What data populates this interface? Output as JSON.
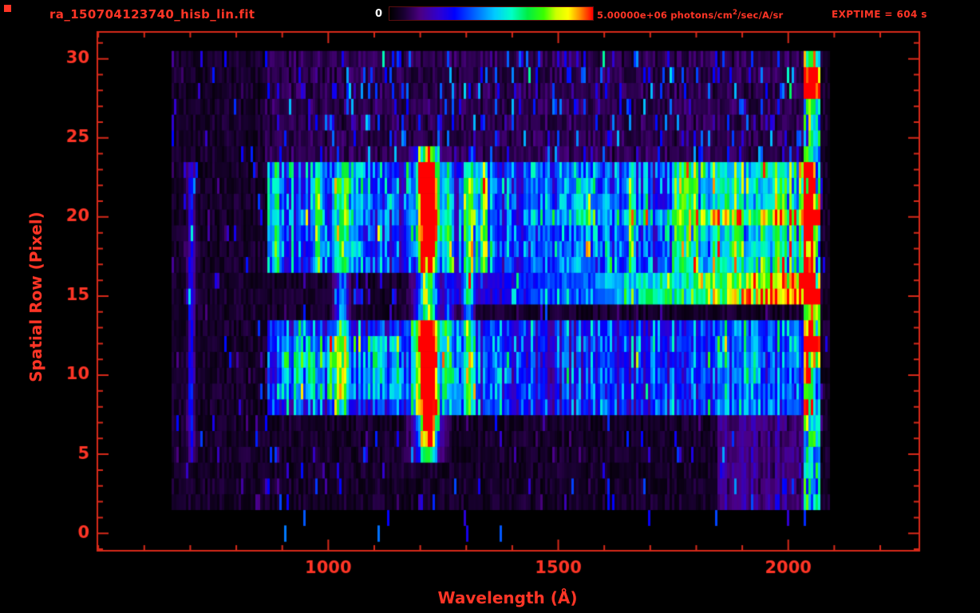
{
  "header": {
    "title": "ra_150704123740_hisb_lin.fit",
    "exptime": "EXPTIME = 604 s",
    "colorbar": {
      "min_label": "0",
      "max_label_prefix": "5.00000e+06 photons/cm",
      "max_label_sup": "2",
      "max_label_suffix": "/sec/A/sr"
    }
  },
  "colors": {
    "background": "#000000",
    "accent_red": "#ff3526",
    "frame_red": "#d82a1a",
    "colorbar_min_label_white": "#ffffff"
  },
  "chart_data": {
    "type": "heatmap",
    "title": "ra_150704123740_hisb_lin.fit",
    "xlabel": "Wavelength (Å)",
    "ylabel": "Spatial Row (Pixel)",
    "x_axis_range": [
      498,
      2285
    ],
    "y_axis_range": [
      -1.1,
      31.7
    ],
    "x_ticks": [
      1000,
      1500,
      2000
    ],
    "x_minor_tick_step": 100,
    "y_ticks": [
      0,
      5,
      10,
      15,
      20,
      25,
      30
    ],
    "y_minor_tick_step": 1,
    "grid": false,
    "exposure_time_s": 604,
    "colorbar": {
      "min_label": "0",
      "max_value": 5000000,
      "units_display": "photons/cm2/sec/A/sr",
      "position": "top-center"
    },
    "colormap_stops": [
      [
        0.0,
        0,
        0,
        0
      ],
      [
        0.07,
        26,
        0,
        51
      ],
      [
        0.15,
        75,
        0,
        130
      ],
      [
        0.24,
        48,
        0,
        208
      ],
      [
        0.32,
        0,
        0,
        255
      ],
      [
        0.42,
        0,
        102,
        255
      ],
      [
        0.52,
        0,
        204,
        255
      ],
      [
        0.6,
        0,
        255,
        200
      ],
      [
        0.68,
        0,
        238,
        68
      ],
      [
        0.76,
        60,
        255,
        0
      ],
      [
        0.82,
        204,
        255,
        0
      ],
      [
        0.88,
        255,
        255,
        0
      ],
      [
        0.94,
        255,
        136,
        0
      ],
      [
        1.0,
        255,
        0,
        0
      ]
    ],
    "data_extent": {
      "wavelength": [
        660,
        2092
      ],
      "rows": [
        0,
        30.4
      ]
    },
    "features": [
      {
        "kind": "noise",
        "name": "background-speckle",
        "rows": [
          1.7,
          30.4
        ],
        "wl": [
          660,
          2092
        ],
        "base": 0.055,
        "spike": 0.2,
        "spike_p": 0.06
      },
      {
        "kind": "noise",
        "name": "top-region-speckle",
        "rows": [
          23.8,
          30.4
        ],
        "wl": [
          860,
          2058
        ],
        "base": 0.04,
        "spike": 0.26,
        "spike_p": 0.1
      },
      {
        "kind": "band",
        "name": "upper-diffuse-band",
        "rows": [
          16.6,
          23.6
        ],
        "wl": [
          868,
          2058
        ],
        "amp": 0.3
      },
      {
        "kind": "band",
        "name": "upper-band-green-right",
        "rows": [
          16.6,
          23.6
        ],
        "wl": [
          1745,
          2052
        ],
        "amp": 0.24
      },
      {
        "kind": "band",
        "name": "lower-diffuse-band",
        "rows": [
          7.6,
          13.2
        ],
        "wl": [
          868,
          2058
        ],
        "amp": 0.28
      },
      {
        "kind": "band",
        "name": "lower-band-left-cyan",
        "rows": [
          8.2,
          12.6
        ],
        "wl": [
          890,
          1160
        ],
        "amp": 0.15
      },
      {
        "kind": "band",
        "name": "lower-right-speckle",
        "rows": [
          2.0,
          13.4
        ],
        "wl": [
          1845,
          2052
        ],
        "amp": 0.1
      },
      {
        "kind": "ramp",
        "name": "row15-bright-streak",
        "rows": [
          14.2,
          16.4
        ],
        "wl": [
          1270,
          2060
        ],
        "amp0": 0.15,
        "amp1": 0.92
      },
      {
        "kind": "ramp",
        "name": "row20-cyan-streak",
        "rows": [
          19.2,
          20.5
        ],
        "wl": [
          1430,
          2056
        ],
        "amp0": 0.1,
        "amp1": 0.26
      },
      {
        "kind": "vline",
        "name": "line-702",
        "wl": 702,
        "sigma": 5,
        "rows": [
          4.5,
          23.5
        ],
        "amp": 0.26
      },
      {
        "kind": "vline",
        "name": "line-887",
        "wl": 887,
        "sigma": 7,
        "rows": [
          16.8,
          23.4
        ],
        "amp": 0.26
      },
      {
        "kind": "vline",
        "name": "line-978",
        "wl": 978,
        "sigma": 7,
        "rows": [
          16.8,
          23.4
        ],
        "amp": 0.28
      },
      {
        "kind": "vline",
        "name": "line-1030-OVI",
        "wl": 1030,
        "sigma": 10,
        "rows": [
          7.8,
          23.5
        ],
        "amp": 0.42
      },
      {
        "kind": "vline",
        "name": "Lyman-alpha-1216",
        "wl": 1216,
        "sigma": 13,
        "rows": [
          4.7,
          24.2
        ],
        "amp": 0.95,
        "wing_amp": 0.22,
        "wing_sigma": 26,
        "dip_rows": [
          13.3,
          17.6
        ],
        "dip_factor": 0.66
      },
      {
        "kind": "vline",
        "name": "line-1262",
        "wl": 1262,
        "sigma": 7,
        "rows": [
          7.8,
          23.5
        ],
        "amp": 0.3
      },
      {
        "kind": "vline",
        "name": "line-1306-OI",
        "wl": 1306,
        "sigma": 9,
        "rows": [
          7.8,
          23.5
        ],
        "amp": 0.42
      },
      {
        "kind": "vline",
        "name": "line-1338-CII",
        "wl": 1338,
        "sigma": 8,
        "rows": [
          16.8,
          23.5
        ],
        "amp": 0.4
      },
      {
        "kind": "vline",
        "name": "line-1358",
        "wl": 1358,
        "sigma": 6,
        "rows": [
          7.9,
          13.0
        ],
        "amp": 0.26
      },
      {
        "kind": "vline",
        "name": "line-1561",
        "wl": 1561,
        "sigma": 8,
        "rows": [
          16.8,
          23.4
        ],
        "amp": 0.27
      },
      {
        "kind": "vline",
        "name": "line-1657",
        "wl": 1657,
        "sigma": 8,
        "rows": [
          16.8,
          23.4
        ],
        "amp": 0.28
      },
      {
        "kind": "column",
        "name": "right-edge-bright-column",
        "wl": [
          2036,
          2072
        ],
        "rows": [
          1.5,
          30.4
        ],
        "amp": 0.5,
        "hotspots": [
          {
            "row": 15.0,
            "amp": 0.85
          },
          {
            "row": 20.0,
            "amp": 0.6
          },
          {
            "row": 28.6,
            "amp": 0.75
          },
          {
            "row": 12.0,
            "amp": 0.5
          }
        ]
      },
      {
        "kind": "sparse",
        "name": "bottom-sparse-dots",
        "rows": [
          0,
          1.7
        ],
        "wl": [
          690,
          2090
        ],
        "density": 0.02,
        "amp": 0.3
      }
    ]
  }
}
